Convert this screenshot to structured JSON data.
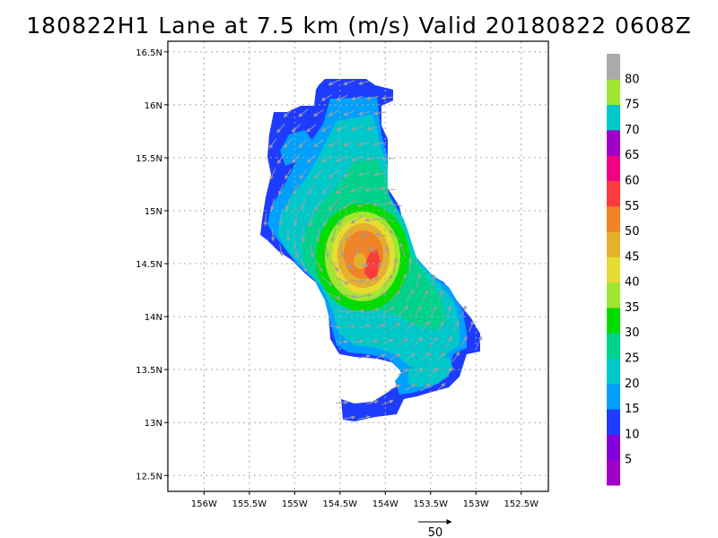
{
  "title": "180822H1 Lane at 7.5 km (m/s) Valid 20180822 0608Z",
  "map": {
    "lon_ticks": [
      {
        "value": -156.0,
        "label": "156W"
      },
      {
        "value": -155.5,
        "label": "155.5W"
      },
      {
        "value": -155.0,
        "label": "155W"
      },
      {
        "value": -154.5,
        "label": "154.5W"
      },
      {
        "value": -154.0,
        "label": "154W"
      },
      {
        "value": -153.5,
        "label": "153.5W"
      },
      {
        "value": -153.0,
        "label": "153W"
      },
      {
        "value": -152.5,
        "label": "152.5W"
      }
    ],
    "lat_ticks": [
      {
        "value": 12.5,
        "label": "12.5N"
      },
      {
        "value": 13.0,
        "label": "13N"
      },
      {
        "value": 13.5,
        "label": "13.5N"
      },
      {
        "value": 14.0,
        "label": "14N"
      },
      {
        "value": 14.5,
        "label": "14.5N"
      },
      {
        "value": 15.0,
        "label": "15N"
      },
      {
        "value": 15.5,
        "label": "15.5N"
      },
      {
        "value": 16.0,
        "label": "16N"
      },
      {
        "value": 16.5,
        "label": "16.5N"
      }
    ],
    "lon_range": [
      -156.4,
      -152.2
    ],
    "lat_range": [
      12.35,
      16.6
    ],
    "storm_center": {
      "lon": -154.2,
      "lat": 14.6
    }
  },
  "colorbar": {
    "labels": [
      "5",
      "10",
      "15",
      "20",
      "25",
      "30",
      "35",
      "40",
      "45",
      "50",
      "55",
      "60",
      "65",
      "70",
      "75",
      "80"
    ],
    "colors": [
      "#a000c8",
      "#8200dc",
      "#1e3cff",
      "#00a0ff",
      "#00c8c8",
      "#00d28c",
      "#00dc00",
      "#a0e632",
      "#e6dc32",
      "#e6af2d",
      "#f08228",
      "#fa3c3c",
      "#f00082",
      "#a000c8",
      "#00c8c8",
      "#a0e632",
      "#aaaaaa"
    ]
  },
  "legend": {
    "reference_vector_label": "50"
  }
}
